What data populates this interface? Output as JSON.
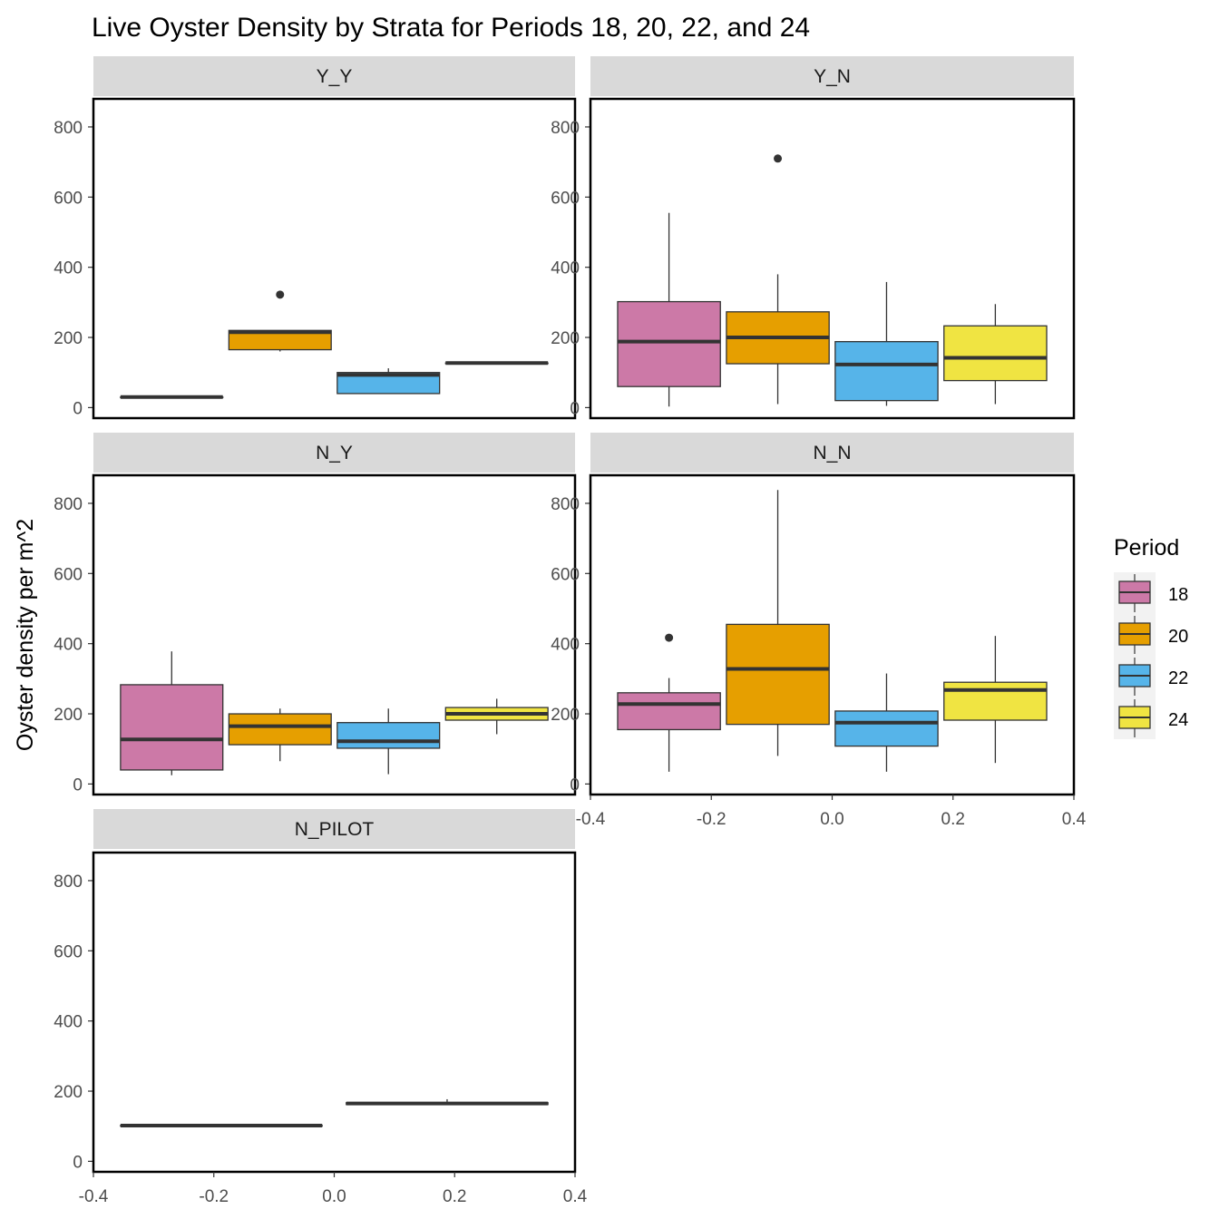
{
  "chart_data": {
    "type": "boxplot",
    "title": "Live Oyster Density by Strata for Periods 18, 20, 22, and 24",
    "ylabel": "Oyster density per m^2",
    "xlabel": "",
    "ylim": [
      -30,
      880
    ],
    "y_ticks": [
      0,
      200,
      400,
      600,
      800
    ],
    "xlim": [
      -0.4,
      0.4
    ],
    "x_ticks": [
      -0.4,
      -0.2,
      0.0,
      0.2,
      0.4
    ],
    "x_tick_labels": [
      "-0.4",
      "-0.2",
      "0.0",
      "0.2",
      "0.4"
    ],
    "grid": false,
    "legend": {
      "title": "Period",
      "placement": "right",
      "entries": [
        {
          "label": "18",
          "color": "#CC79A7"
        },
        {
          "label": "20",
          "color": "#E69F00"
        },
        {
          "label": "22",
          "color": "#56B4E9"
        },
        {
          "label": "24",
          "color": "#F0E442"
        }
      ]
    },
    "panels": [
      {
        "strip": "Y_Y",
        "boxes": [
          {
            "period": "18",
            "x_range": [
              -0.355,
              -0.185
            ],
            "min": 30,
            "q1": 30,
            "median": 30,
            "q3": 30,
            "max": 30,
            "outliers": []
          },
          {
            "period": "20",
            "x_range": [
              -0.175,
              -0.005
            ],
            "min": 160,
            "q1": 165,
            "median": 215,
            "q3": 220,
            "max": 220,
            "outliers": [
              322
            ]
          },
          {
            "period": "22",
            "x_range": [
              0.005,
              0.175
            ],
            "min": 40,
            "q1": 40,
            "median": 93,
            "q3": 100,
            "max": 112,
            "outliers": []
          },
          {
            "period": "24",
            "x_range": [
              0.185,
              0.355
            ],
            "min": 127,
            "q1": 127,
            "median": 127,
            "q3": 127,
            "max": 127,
            "outliers": []
          }
        ]
      },
      {
        "strip": "Y_N",
        "boxes": [
          {
            "period": "18",
            "x_range": [
              -0.355,
              -0.185
            ],
            "min": 3,
            "q1": 60,
            "median": 188,
            "q3": 302,
            "max": 555,
            "outliers": []
          },
          {
            "period": "20",
            "x_range": [
              -0.175,
              -0.005
            ],
            "min": 10,
            "q1": 125,
            "median": 200,
            "q3": 273,
            "max": 380,
            "outliers": [
              710
            ]
          },
          {
            "period": "22",
            "x_range": [
              0.005,
              0.175
            ],
            "min": 5,
            "q1": 20,
            "median": 123,
            "q3": 188,
            "max": 358,
            "outliers": []
          },
          {
            "period": "24",
            "x_range": [
              0.185,
              0.355
            ],
            "min": 10,
            "q1": 77,
            "median": 142,
            "q3": 233,
            "max": 295,
            "outliers": []
          }
        ]
      },
      {
        "strip": "N_Y",
        "boxes": [
          {
            "period": "18",
            "x_range": [
              -0.355,
              -0.185
            ],
            "min": 25,
            "q1": 40,
            "median": 127,
            "q3": 283,
            "max": 378,
            "outliers": []
          },
          {
            "period": "20",
            "x_range": [
              -0.175,
              -0.005
            ],
            "min": 65,
            "q1": 112,
            "median": 165,
            "q3": 200,
            "max": 215,
            "outliers": []
          },
          {
            "period": "22",
            "x_range": [
              0.005,
              0.175
            ],
            "min": 28,
            "q1": 102,
            "median": 122,
            "q3": 175,
            "max": 215,
            "outliers": []
          },
          {
            "period": "24",
            "x_range": [
              0.185,
              0.355
            ],
            "min": 142,
            "q1": 182,
            "median": 200,
            "q3": 218,
            "max": 243,
            "outliers": []
          }
        ]
      },
      {
        "strip": "N_N",
        "boxes": [
          {
            "period": "18",
            "x_range": [
              -0.355,
              -0.185
            ],
            "min": 35,
            "q1": 155,
            "median": 228,
            "q3": 260,
            "max": 302,
            "outliers": [
              417
            ]
          },
          {
            "period": "20",
            "x_range": [
              -0.175,
              -0.005
            ],
            "min": 80,
            "q1": 170,
            "median": 328,
            "q3": 455,
            "max": 838,
            "outliers": []
          },
          {
            "period": "22",
            "x_range": [
              0.005,
              0.175
            ],
            "min": 35,
            "q1": 108,
            "median": 175,
            "q3": 208,
            "max": 315,
            "outliers": []
          },
          {
            "period": "24",
            "x_range": [
              0.185,
              0.355
            ],
            "min": 60,
            "q1": 182,
            "median": 268,
            "q3": 290,
            "max": 422,
            "outliers": []
          }
        ]
      },
      {
        "strip": "N_PILOT",
        "boxes": [
          {
            "period": "20",
            "x_range": [
              -0.355,
              -0.02
            ],
            "min": 102,
            "q1": 102,
            "median": 102,
            "q3": 102,
            "max": 102,
            "outliers": []
          },
          {
            "period": "22",
            "x_range": [
              0.02,
              0.355
            ],
            "min": 162,
            "q1": 162,
            "median": 165,
            "q3": 167,
            "max": 177,
            "outliers": []
          }
        ]
      }
    ]
  }
}
